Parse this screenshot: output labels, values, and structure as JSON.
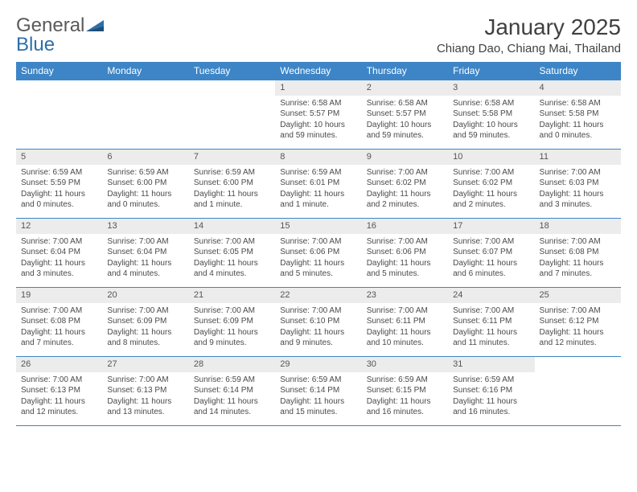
{
  "brand": {
    "part1": "General",
    "part2": "Blue"
  },
  "title": "January 2025",
  "location": "Chiang Dao, Chiang Mai, Thailand",
  "colors": {
    "header_bg": "#3d85c6",
    "header_fg": "#ffffff",
    "daynum_bg": "#ececec",
    "rule": "#3d85c6",
    "text": "#4a4a4a"
  },
  "weekdays": [
    "Sunday",
    "Monday",
    "Tuesday",
    "Wednesday",
    "Thursday",
    "Friday",
    "Saturday"
  ],
  "weeks": [
    [
      null,
      null,
      null,
      {
        "n": "1",
        "sr": "Sunrise: 6:58 AM",
        "ss": "Sunset: 5:57 PM",
        "dl": "Daylight: 10 hours and 59 minutes."
      },
      {
        "n": "2",
        "sr": "Sunrise: 6:58 AM",
        "ss": "Sunset: 5:57 PM",
        "dl": "Daylight: 10 hours and 59 minutes."
      },
      {
        "n": "3",
        "sr": "Sunrise: 6:58 AM",
        "ss": "Sunset: 5:58 PM",
        "dl": "Daylight: 10 hours and 59 minutes."
      },
      {
        "n": "4",
        "sr": "Sunrise: 6:58 AM",
        "ss": "Sunset: 5:58 PM",
        "dl": "Daylight: 11 hours and 0 minutes."
      }
    ],
    [
      {
        "n": "5",
        "sr": "Sunrise: 6:59 AM",
        "ss": "Sunset: 5:59 PM",
        "dl": "Daylight: 11 hours and 0 minutes."
      },
      {
        "n": "6",
        "sr": "Sunrise: 6:59 AM",
        "ss": "Sunset: 6:00 PM",
        "dl": "Daylight: 11 hours and 0 minutes."
      },
      {
        "n": "7",
        "sr": "Sunrise: 6:59 AM",
        "ss": "Sunset: 6:00 PM",
        "dl": "Daylight: 11 hours and 1 minute."
      },
      {
        "n": "8",
        "sr": "Sunrise: 6:59 AM",
        "ss": "Sunset: 6:01 PM",
        "dl": "Daylight: 11 hours and 1 minute."
      },
      {
        "n": "9",
        "sr": "Sunrise: 7:00 AM",
        "ss": "Sunset: 6:02 PM",
        "dl": "Daylight: 11 hours and 2 minutes."
      },
      {
        "n": "10",
        "sr": "Sunrise: 7:00 AM",
        "ss": "Sunset: 6:02 PM",
        "dl": "Daylight: 11 hours and 2 minutes."
      },
      {
        "n": "11",
        "sr": "Sunrise: 7:00 AM",
        "ss": "Sunset: 6:03 PM",
        "dl": "Daylight: 11 hours and 3 minutes."
      }
    ],
    [
      {
        "n": "12",
        "sr": "Sunrise: 7:00 AM",
        "ss": "Sunset: 6:04 PM",
        "dl": "Daylight: 11 hours and 3 minutes."
      },
      {
        "n": "13",
        "sr": "Sunrise: 7:00 AM",
        "ss": "Sunset: 6:04 PM",
        "dl": "Daylight: 11 hours and 4 minutes."
      },
      {
        "n": "14",
        "sr": "Sunrise: 7:00 AM",
        "ss": "Sunset: 6:05 PM",
        "dl": "Daylight: 11 hours and 4 minutes."
      },
      {
        "n": "15",
        "sr": "Sunrise: 7:00 AM",
        "ss": "Sunset: 6:06 PM",
        "dl": "Daylight: 11 hours and 5 minutes."
      },
      {
        "n": "16",
        "sr": "Sunrise: 7:00 AM",
        "ss": "Sunset: 6:06 PM",
        "dl": "Daylight: 11 hours and 5 minutes."
      },
      {
        "n": "17",
        "sr": "Sunrise: 7:00 AM",
        "ss": "Sunset: 6:07 PM",
        "dl": "Daylight: 11 hours and 6 minutes."
      },
      {
        "n": "18",
        "sr": "Sunrise: 7:00 AM",
        "ss": "Sunset: 6:08 PM",
        "dl": "Daylight: 11 hours and 7 minutes."
      }
    ],
    [
      {
        "n": "19",
        "sr": "Sunrise: 7:00 AM",
        "ss": "Sunset: 6:08 PM",
        "dl": "Daylight: 11 hours and 7 minutes."
      },
      {
        "n": "20",
        "sr": "Sunrise: 7:00 AM",
        "ss": "Sunset: 6:09 PM",
        "dl": "Daylight: 11 hours and 8 minutes."
      },
      {
        "n": "21",
        "sr": "Sunrise: 7:00 AM",
        "ss": "Sunset: 6:09 PM",
        "dl": "Daylight: 11 hours and 9 minutes."
      },
      {
        "n": "22",
        "sr": "Sunrise: 7:00 AM",
        "ss": "Sunset: 6:10 PM",
        "dl": "Daylight: 11 hours and 9 minutes."
      },
      {
        "n": "23",
        "sr": "Sunrise: 7:00 AM",
        "ss": "Sunset: 6:11 PM",
        "dl": "Daylight: 11 hours and 10 minutes."
      },
      {
        "n": "24",
        "sr": "Sunrise: 7:00 AM",
        "ss": "Sunset: 6:11 PM",
        "dl": "Daylight: 11 hours and 11 minutes."
      },
      {
        "n": "25",
        "sr": "Sunrise: 7:00 AM",
        "ss": "Sunset: 6:12 PM",
        "dl": "Daylight: 11 hours and 12 minutes."
      }
    ],
    [
      {
        "n": "26",
        "sr": "Sunrise: 7:00 AM",
        "ss": "Sunset: 6:13 PM",
        "dl": "Daylight: 11 hours and 12 minutes."
      },
      {
        "n": "27",
        "sr": "Sunrise: 7:00 AM",
        "ss": "Sunset: 6:13 PM",
        "dl": "Daylight: 11 hours and 13 minutes."
      },
      {
        "n": "28",
        "sr": "Sunrise: 6:59 AM",
        "ss": "Sunset: 6:14 PM",
        "dl": "Daylight: 11 hours and 14 minutes."
      },
      {
        "n": "29",
        "sr": "Sunrise: 6:59 AM",
        "ss": "Sunset: 6:14 PM",
        "dl": "Daylight: 11 hours and 15 minutes."
      },
      {
        "n": "30",
        "sr": "Sunrise: 6:59 AM",
        "ss": "Sunset: 6:15 PM",
        "dl": "Daylight: 11 hours and 16 minutes."
      },
      {
        "n": "31",
        "sr": "Sunrise: 6:59 AM",
        "ss": "Sunset: 6:16 PM",
        "dl": "Daylight: 11 hours and 16 minutes."
      },
      null
    ]
  ]
}
